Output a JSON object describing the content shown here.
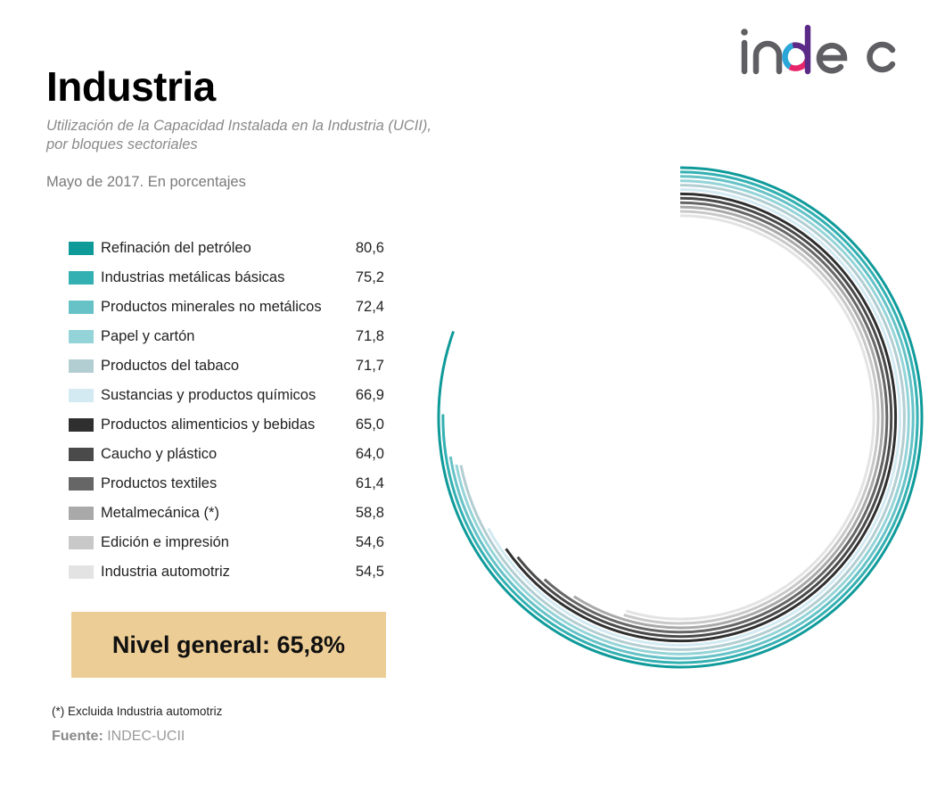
{
  "header": {
    "title": "Industria",
    "subtitle_line1": "Utilización de la Capacidad Instalada en la Industria (UCII),",
    "subtitle_line2": "por bloques sectoriales",
    "period": "Mayo de 2017. En porcentajes"
  },
  "logo": {
    "text": "indec",
    "colors": {
      "gray": "#5f5f63",
      "blue": "#2aa6d9",
      "magenta": "#e8246b",
      "purple": "#5b2a86"
    }
  },
  "total": {
    "text": "Nivel general: 65,8%",
    "value": 65.8,
    "background": "#edcd96"
  },
  "footnote": "(*) Excluida Industria automotriz",
  "source": {
    "label": "Fuente:",
    "value": "INDEC-UCII"
  },
  "chart_data": {
    "type": "radial-bar",
    "title": "Industria",
    "subtitle": "Utilización de la Capacidad Instalada en la Industria (UCII), por bloques sectoriales",
    "unit": "%",
    "range": [
      0,
      100
    ],
    "series": [
      {
        "name": "Refinación del petróleo",
        "value": 80.6,
        "label": "80,6",
        "color": "#0f9a9a"
      },
      {
        "name": "Industrias metálicas básicas",
        "value": 75.2,
        "label": "75,2",
        "color": "#33b0b2"
      },
      {
        "name": "Productos minerales no metálicos",
        "value": 72.4,
        "label": "72,4",
        "color": "#66c2c7"
      },
      {
        "name": "Papel y cartón",
        "value": 71.8,
        "label": "71,8",
        "color": "#94d4d8"
      },
      {
        "name": "Productos del tabaco",
        "value": 71.7,
        "label": "71,7",
        "color": "#b3ced2"
      },
      {
        "name": "Sustancias y productos químicos",
        "value": 66.9,
        "label": "66,9",
        "color": "#d3eaf2"
      },
      {
        "name": "Productos alimenticios y bebidas",
        "value": 65.0,
        "label": "65,0",
        "color": "#2f2f2f"
      },
      {
        "name": "Caucho y plástico",
        "value": 64.0,
        "label": "64,0",
        "color": "#4a4a4a"
      },
      {
        "name": "Productos textiles",
        "value": 61.4,
        "label": "61,4",
        "color": "#666666"
      },
      {
        "name": "Metalmecánica (*)",
        "value": 58.8,
        "label": "58,8",
        "color": "#a9a9a9"
      },
      {
        "name": "Edición e impresión",
        "value": 54.6,
        "label": "54,6",
        "color": "#c8c8c8"
      },
      {
        "name": "Industria automotriz",
        "value": 54.5,
        "label": "54,5",
        "color": "#e3e3e3"
      }
    ]
  }
}
